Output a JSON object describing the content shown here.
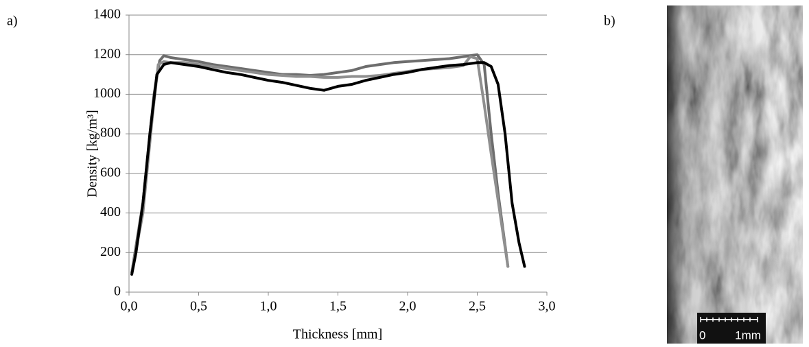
{
  "chart_data": {
    "type": "line",
    "panel_labels": [
      "a)",
      "b)"
    ],
    "x_label": "Thickness [mm]",
    "y_label": "Density [kg/m³]",
    "xlim": [
      0,
      3
    ],
    "ylim": [
      0,
      1400
    ],
    "xticks": [
      {
        "value": 0,
        "label": "0,0"
      },
      {
        "value": 0.5,
        "label": "0,5"
      },
      {
        "value": 1,
        "label": "1,0"
      },
      {
        "value": 1.5,
        "label": "1,5"
      },
      {
        "value": 2,
        "label": "2,0"
      },
      {
        "value": 2.5,
        "label": "2,5"
      },
      {
        "value": 3,
        "label": "3,0"
      }
    ],
    "yticks": [
      0,
      200,
      400,
      600,
      800,
      1000,
      1200,
      1400
    ],
    "grid": true,
    "series": [
      {
        "color": "#6d6d6d",
        "x": [
          0.02,
          0.1,
          0.18,
          0.22,
          0.25,
          0.3,
          0.4,
          0.5,
          0.6,
          0.7,
          0.8,
          0.9,
          1.0,
          1.1,
          1.2,
          1.3,
          1.4,
          1.5,
          1.6,
          1.7,
          1.8,
          1.9,
          2.0,
          2.1,
          2.2,
          2.3,
          2.4,
          2.5,
          2.55,
          2.6,
          2.65,
          2.72
        ],
        "values": [
          100,
          450,
          1000,
          1170,
          1195,
          1185,
          1175,
          1165,
          1150,
          1140,
          1130,
          1120,
          1110,
          1100,
          1100,
          1095,
          1100,
          1110,
          1120,
          1140,
          1150,
          1160,
          1165,
          1170,
          1175,
          1180,
          1190,
          1200,
          1150,
          800,
          500,
          130
        ]
      },
      {
        "color": "#8f8f8f",
        "x": [
          0.02,
          0.1,
          0.17,
          0.21,
          0.25,
          0.3,
          0.4,
          0.5,
          0.6,
          0.7,
          0.8,
          0.9,
          1.0,
          1.1,
          1.2,
          1.3,
          1.4,
          1.5,
          1.6,
          1.7,
          1.8,
          1.9,
          2.0,
          2.1,
          2.2,
          2.3,
          2.4,
          2.45,
          2.5,
          2.55,
          2.6,
          2.72
        ],
        "values": [
          100,
          400,
          900,
          1150,
          1165,
          1160,
          1160,
          1150,
          1140,
          1130,
          1120,
          1110,
          1100,
          1095,
          1090,
          1090,
          1085,
          1085,
          1090,
          1090,
          1095,
          1105,
          1115,
          1125,
          1130,
          1135,
          1145,
          1190,
          1180,
          950,
          700,
          130
        ]
      },
      {
        "color": "#000000",
        "x": [
          0.02,
          0.05,
          0.1,
          0.15,
          0.2,
          0.25,
          0.3,
          0.4,
          0.5,
          0.6,
          0.7,
          0.8,
          0.9,
          1.0,
          1.1,
          1.2,
          1.3,
          1.4,
          1.5,
          1.6,
          1.7,
          1.8,
          1.9,
          2.0,
          2.1,
          2.2,
          2.3,
          2.4,
          2.5,
          2.55,
          2.6,
          2.65,
          2.7,
          2.75,
          2.8,
          2.84
        ],
        "values": [
          90,
          200,
          450,
          800,
          1100,
          1150,
          1160,
          1150,
          1140,
          1125,
          1110,
          1100,
          1085,
          1070,
          1060,
          1045,
          1030,
          1020,
          1040,
          1050,
          1070,
          1085,
          1100,
          1110,
          1125,
          1135,
          1145,
          1150,
          1160,
          1160,
          1140,
          1050,
          800,
          450,
          250,
          130
        ]
      }
    ],
    "photo_scale_labels": [
      "0",
      "1mm"
    ]
  }
}
